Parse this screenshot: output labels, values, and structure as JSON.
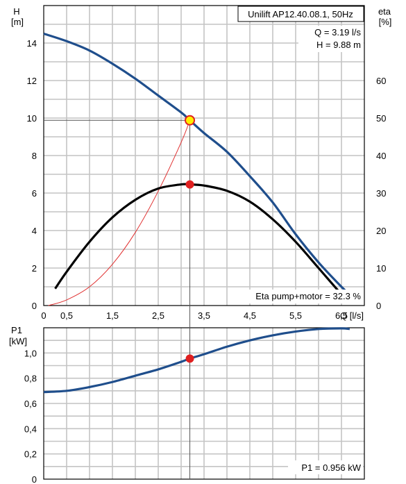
{
  "chart_data": [
    {
      "type": "line",
      "title": "Unilift AP12.40.08.1, 50Hz",
      "y_label": "H",
      "y_unit": "[m]",
      "y2_label": "eta",
      "y2_unit": "[%]",
      "x_label": "Q [l/s]",
      "xlim": [
        0,
        7
      ],
      "ylim": [
        0,
        16
      ],
      "y2lim": [
        0,
        80
      ],
      "x_ticks": [
        "0",
        "0,5",
        "1,5",
        "2,5",
        "3,5",
        "4,5",
        "5,5",
        "6,5"
      ],
      "x_tick_values": [
        0,
        0.5,
        1.5,
        2.5,
        3.5,
        4.5,
        5.5,
        6.5
      ],
      "y_ticks": [
        "0",
        "2",
        "4",
        "6",
        "8",
        "10",
        "12",
        "14"
      ],
      "y_tick_values": [
        0,
        2,
        4,
        6,
        8,
        10,
        12,
        14
      ],
      "y2_ticks": [
        "0",
        "10",
        "20",
        "30",
        "40",
        "50",
        "60"
      ],
      "y2_tick_values": [
        0,
        10,
        20,
        30,
        40,
        50,
        60
      ],
      "grid": true,
      "duty_point_lines": [
        "Q = 3.19 l/s",
        "H = 9.88 m"
      ],
      "duty_point": {
        "q": 3.19,
        "h": 9.88,
        "eta": 32.3
      },
      "annotation": "Eta pump+motor = 32.3 %",
      "colors": {
        "head_curve": "#1f4e8c",
        "eta_curve": "#000000",
        "system_curve": "#e03030",
        "marker": "#e02020",
        "marker_fill": "#ffee00"
      },
      "series": [
        {
          "key": "head",
          "x": [
            0,
            0.5,
            1.0,
            1.5,
            2.0,
            2.5,
            3.0,
            3.19,
            3.5,
            4.0,
            4.5,
            5.0,
            5.5,
            6.0,
            6.5,
            6.68
          ],
          "y": [
            14.5,
            14.1,
            13.6,
            12.9,
            12.1,
            11.2,
            10.3,
            9.88,
            9.2,
            8.2,
            6.9,
            5.5,
            3.8,
            2.3,
            1.0,
            0.6
          ]
        },
        {
          "key": "eta",
          "axis": "y2",
          "x": [
            0.25,
            0.5,
            1.0,
            1.5,
            2.0,
            2.5,
            3.0,
            3.19,
            3.5,
            4.0,
            4.5,
            5.0,
            5.5,
            6.0,
            6.5,
            6.68
          ],
          "y": [
            4.5,
            9.0,
            17.0,
            23.5,
            28.2,
            31.2,
            32.3,
            32.3,
            32.0,
            30.6,
            27.7,
            23.0,
            17.0,
            10.0,
            3.0,
            0.8
          ]
        },
        {
          "key": "system",
          "x": [
            0.1,
            0.5,
            1.0,
            1.5,
            2.0,
            2.5,
            3.0,
            3.19
          ],
          "y": [
            0.0,
            0.3,
            1.0,
            2.2,
            3.9,
            6.1,
            8.7,
            9.88
          ]
        }
      ]
    },
    {
      "type": "line",
      "y_label": "P1",
      "y_unit": "[kW]",
      "xlim": [
        0,
        7
      ],
      "ylim": [
        0,
        1.2
      ],
      "y_ticks": [
        "0",
        "0,2",
        "0,4",
        "0,6",
        "0,8",
        "1,0"
      ],
      "y_tick_values": [
        0,
        0.2,
        0.4,
        0.6,
        0.8,
        1.0
      ],
      "grid": true,
      "duty_point": {
        "q": 3.19,
        "p1": 0.956
      },
      "annotation": "P1 = 0.956 kW",
      "colors": {
        "power_curve": "#1f4e8c",
        "marker": "#e02020"
      },
      "series": [
        {
          "key": "power",
          "x": [
            0,
            0.5,
            1.0,
            1.5,
            2.0,
            2.5,
            3.0,
            3.19,
            3.5,
            4.0,
            4.5,
            5.0,
            5.5,
            6.0,
            6.5,
            6.68
          ],
          "y": [
            0.69,
            0.7,
            0.73,
            0.77,
            0.82,
            0.87,
            0.93,
            0.956,
            0.99,
            1.05,
            1.1,
            1.14,
            1.17,
            1.19,
            1.195,
            1.19
          ]
        }
      ]
    }
  ]
}
